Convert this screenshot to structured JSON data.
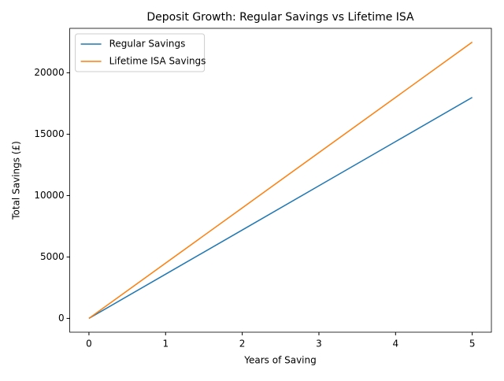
{
  "chart_data": {
    "type": "line",
    "title": "Deposit Growth: Regular Savings vs Lifetime ISA",
    "xlabel": "Years of Saving",
    "ylabel": "Total Savings (£)",
    "x": [
      0,
      1,
      2,
      3,
      4,
      5
    ],
    "series": [
      {
        "name": "Regular Savings",
        "color": "#1f77b4",
        "values": [
          0,
          3600,
          7200,
          10800,
          14400,
          18000
        ]
      },
      {
        "name": "Lifetime ISA Savings",
        "color": "#ff7f0e",
        "values": [
          0,
          4500,
          9000,
          13500,
          18000,
          22500
        ]
      }
    ],
    "xlim": [
      -0.25,
      5.25
    ],
    "ylim": [
      -1125,
      23625
    ],
    "xticks": [
      0,
      1,
      2,
      3,
      4,
      5
    ],
    "yticks": [
      0,
      5000,
      10000,
      15000,
      20000
    ],
    "grid": false,
    "legend": "upper left"
  }
}
